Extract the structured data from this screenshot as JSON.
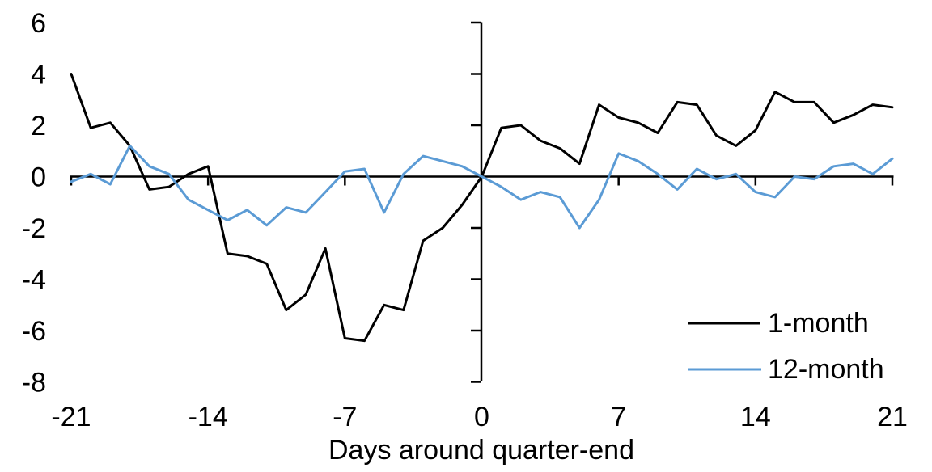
{
  "chart_data": {
    "type": "line",
    "title": "",
    "xlabel": "Days around quarter-end",
    "ylabel": "",
    "xlim": [
      -21,
      21
    ],
    "ylim": [
      -8,
      6
    ],
    "grid": false,
    "legend_position": "inside-right",
    "xticks": [
      -21,
      -14,
      -7,
      0,
      7,
      14,
      21
    ],
    "yticks": [
      6,
      4,
      2,
      0,
      -2,
      -4,
      -6,
      -8
    ],
    "x": [
      -21,
      -20,
      -19,
      -18,
      -17,
      -16,
      -15,
      -14,
      -13,
      -12,
      -11,
      -10,
      -9,
      -8,
      -7,
      -6,
      -5,
      -4,
      -3,
      -2,
      -1,
      0,
      1,
      2,
      3,
      4,
      5,
      6,
      7,
      8,
      9,
      10,
      11,
      12,
      13,
      14,
      15,
      16,
      17,
      18,
      19,
      20,
      21
    ],
    "series": [
      {
        "name": "1-month",
        "color": "#000000",
        "values": [
          4.0,
          1.9,
          2.1,
          1.2,
          -0.5,
          -0.4,
          0.1,
          0.4,
          -3.0,
          -3.1,
          -3.4,
          -5.2,
          -4.6,
          -2.8,
          -6.3,
          -6.4,
          -5.0,
          -5.2,
          -2.5,
          -2.0,
          -1.1,
          0.0,
          1.9,
          2.0,
          1.4,
          1.1,
          0.5,
          2.8,
          2.3,
          2.1,
          1.7,
          2.9,
          2.8,
          1.6,
          1.2,
          1.8,
          3.3,
          2.9,
          2.9,
          2.1,
          2.4,
          2.8,
          2.7
        ]
      },
      {
        "name": "12-month",
        "color": "#5B9BD5",
        "values": [
          -0.2,
          0.1,
          -0.3,
          1.2,
          0.4,
          0.1,
          -0.9,
          -1.3,
          -1.7,
          -1.3,
          -1.9,
          -1.2,
          -1.4,
          -0.6,
          0.2,
          0.3,
          -1.4,
          0.1,
          0.8,
          0.6,
          0.4,
          0.0,
          -0.4,
          -0.9,
          -0.6,
          -0.8,
          -2.0,
          -0.9,
          0.9,
          0.6,
          0.1,
          -0.5,
          0.3,
          -0.1,
          0.1,
          -0.6,
          -0.8,
          0.0,
          -0.1,
          0.4,
          0.5,
          0.1,
          0.7
        ]
      }
    ]
  },
  "colors": {
    "background": "#ffffff",
    "axis": "#000000",
    "text": "#000000",
    "series_1": "#000000",
    "series_2": "#5B9BD5"
  }
}
